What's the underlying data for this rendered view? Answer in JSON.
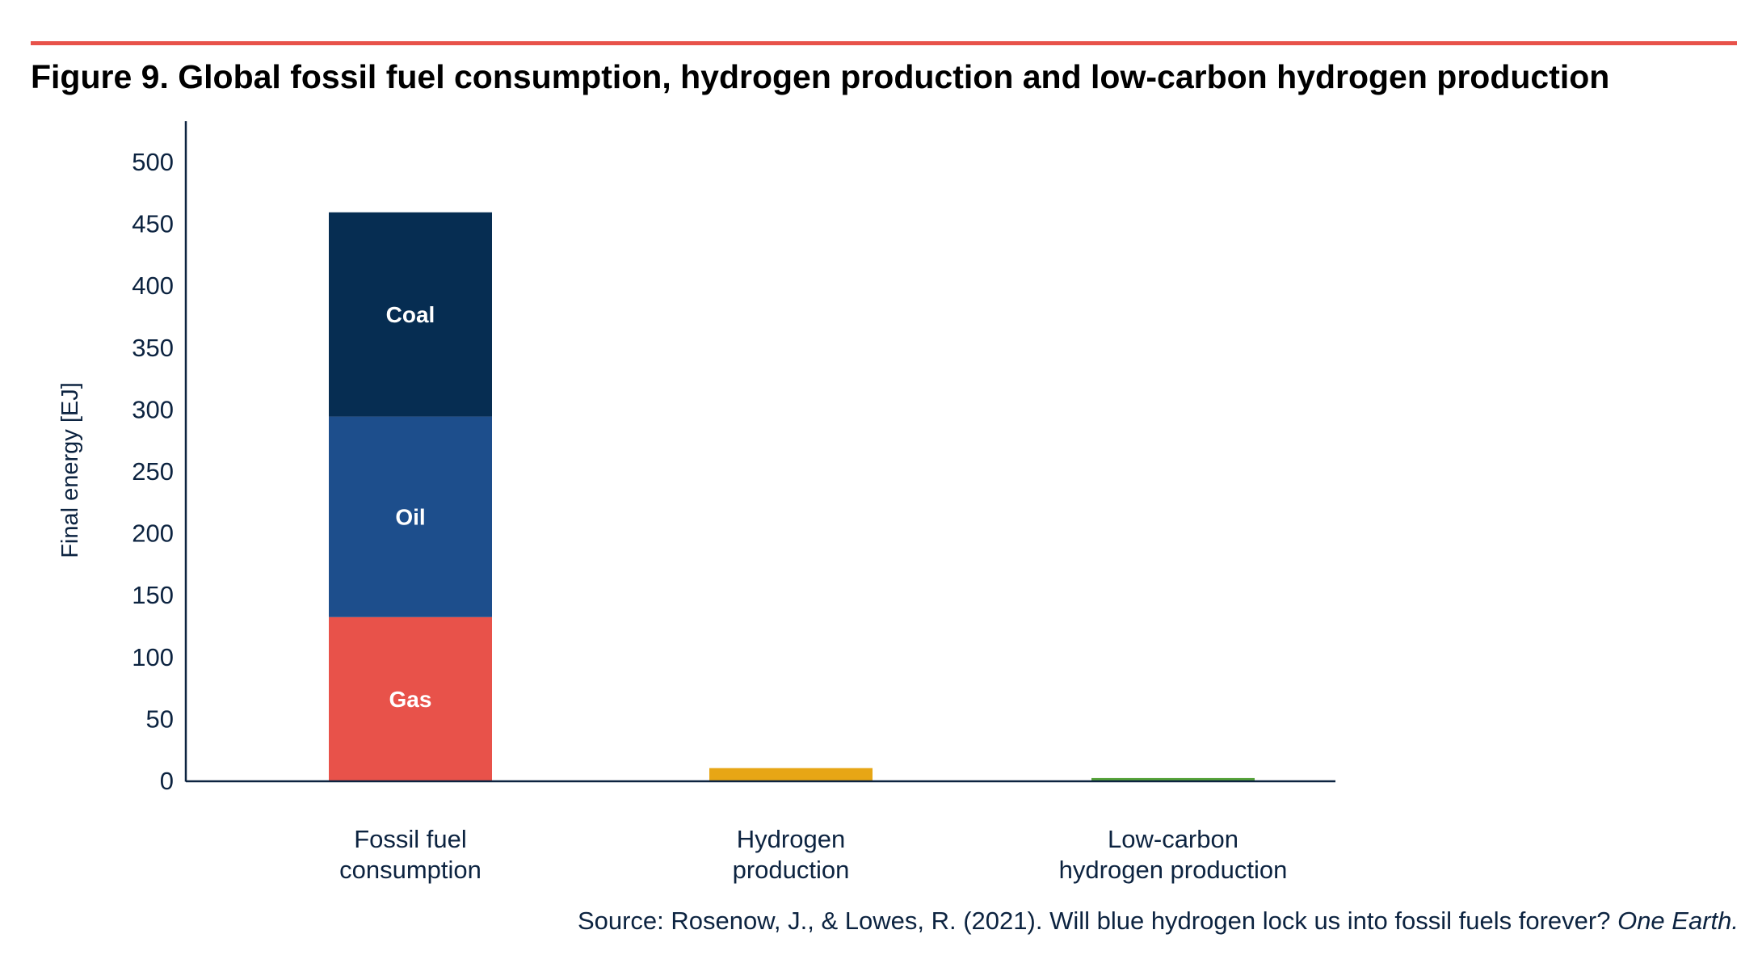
{
  "figure": {
    "title": "Figure 9. Global fossil fuel consumption, hydrogen production and low-carbon hydrogen production",
    "source_text": "Source: Rosenow, J., & Lowes, R. (2021). Will blue hydrogen lock us into fossil fuels forever?",
    "source_journal": "One Earth."
  },
  "colors": {
    "rule": "#e8524a",
    "axis": "#0c2340",
    "text": "#0c2340"
  },
  "chart_data": {
    "type": "bar",
    "stacked": true,
    "title": "",
    "xlabel": "",
    "ylabel": "Final energy [EJ]",
    "ylim": [
      0,
      530
    ],
    "yticks": [
      "0",
      "50",
      "100",
      "150",
      "200",
      "250",
      "300",
      "350",
      "400",
      "450",
      "500"
    ],
    "categories": [
      [
        "Fossil fuel",
        "consumption"
      ],
      [
        "Hydrogen",
        "production"
      ],
      [
        "Low-carbon",
        "hydrogen production"
      ]
    ],
    "grid": false,
    "legend": "none",
    "segments": [
      {
        "category": 0,
        "name": "Gas",
        "label": "Gas",
        "value": 132,
        "color": "#e8524a"
      },
      {
        "category": 0,
        "name": "Oil",
        "label": "Oil",
        "value": 162,
        "color": "#1d4e8c"
      },
      {
        "category": 0,
        "name": "Coal",
        "label": "Coal",
        "value": 165,
        "color": "#062d52"
      },
      {
        "category": 1,
        "name": "Hydrogen",
        "label": "",
        "value": 10,
        "color": "#e7a615"
      },
      {
        "category": 2,
        "name": "Low-carbon hydrogen",
        "label": "",
        "value": 2,
        "color": "#57a43b"
      }
    ]
  }
}
